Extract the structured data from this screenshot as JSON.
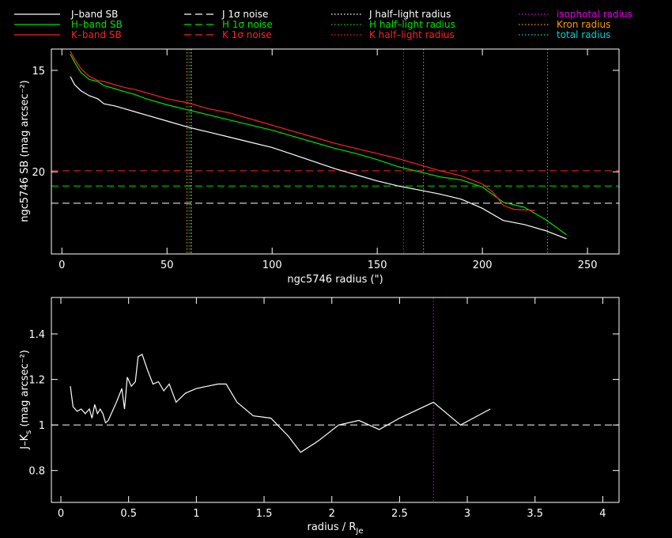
{
  "colors": {
    "background": "#000000",
    "axes": "#ffffff",
    "J": "#ffffff",
    "H": "#00e000",
    "K": "#ff2020",
    "isophotal": "#e000e0",
    "kron": "#ff9a00",
    "total": "#00d0d0"
  },
  "legend": {
    "col1": [
      {
        "label": "J–band SB",
        "color": "#ffffff",
        "style": "solid"
      },
      {
        "label": "H–band SB",
        "color": "#00e000",
        "style": "solid"
      },
      {
        "label": "K–band SB",
        "color": "#ff2020",
        "style": "solid"
      }
    ],
    "col2": [
      {
        "label": "J 1σ noise",
        "color": "#ffffff",
        "style": "dashed"
      },
      {
        "label": "H 1σ noise",
        "color": "#00e000",
        "style": "dashed"
      },
      {
        "label": "K 1σ noise",
        "color": "#ff2020",
        "style": "dashed"
      }
    ],
    "col3": [
      {
        "label": "J half–light radius",
        "color": "#ffffff",
        "style": "dotted"
      },
      {
        "label": "H half–light radius",
        "color": "#00e000",
        "style": "dotted"
      },
      {
        "label": "K half–light radius",
        "color": "#ff2020",
        "style": "dotted"
      }
    ],
    "col4": [
      {
        "label": "isophotal radius",
        "color": "#e000e0",
        "style": "dotted"
      },
      {
        "label": "Kron radius",
        "color": "#ff9a00",
        "style": "dotted"
      },
      {
        "label": "total radius",
        "color": "#00d0d0",
        "style": "dotted"
      }
    ]
  },
  "chart_data": [
    {
      "type": "line",
      "xlabel": "ngc5746 radius (\")",
      "ylabel": "ngc5746 SB (mag arcsec⁻²)",
      "xlim": [
        -5,
        265
      ],
      "ylim": [
        24.05,
        13.95
      ],
      "xticks": [
        0,
        50,
        100,
        150,
        200,
        250
      ],
      "yticks": [
        15,
        20
      ],
      "series": [
        {
          "name": "J–band SB",
          "color": "#ffffff",
          "style": "solid",
          "x": [
            4,
            6,
            9,
            13,
            17,
            20,
            25,
            30,
            35,
            40,
            50,
            60,
            70,
            80,
            90,
            100,
            110,
            120,
            130,
            140,
            150,
            160,
            170,
            180,
            190,
            200,
            210,
            220,
            230,
            240
          ],
          "y": [
            15.3,
            15.7,
            16.0,
            16.25,
            16.4,
            16.65,
            16.75,
            16.9,
            17.05,
            17.2,
            17.5,
            17.8,
            18.05,
            18.3,
            18.55,
            18.8,
            19.15,
            19.5,
            19.85,
            20.15,
            20.45,
            20.7,
            20.9,
            21.1,
            21.35,
            21.8,
            22.4,
            22.6,
            22.9,
            23.3
          ]
        },
        {
          "name": "H–band SB",
          "color": "#00e000",
          "style": "solid",
          "x": [
            4,
            6,
            9,
            13,
            17,
            20,
            25,
            30,
            35,
            40,
            50,
            60,
            70,
            80,
            90,
            100,
            110,
            120,
            130,
            140,
            150,
            160,
            170,
            180,
            190,
            200,
            210,
            220,
            230,
            240
          ],
          "y": [
            14.2,
            14.6,
            15.1,
            15.45,
            15.55,
            15.75,
            15.9,
            16.05,
            16.2,
            16.4,
            16.7,
            16.95,
            17.2,
            17.45,
            17.7,
            17.95,
            18.25,
            18.55,
            18.85,
            19.1,
            19.4,
            19.75,
            20.0,
            20.25,
            20.4,
            20.75,
            21.5,
            21.75,
            22.35,
            23.1
          ]
        },
        {
          "name": "K–band SB",
          "color": "#ff2020",
          "style": "solid",
          "x": [
            4,
            6,
            9,
            13,
            17,
            20,
            25,
            30,
            35,
            40,
            50,
            60,
            70,
            80,
            90,
            100,
            110,
            120,
            130,
            140,
            150,
            160,
            170,
            180,
            190,
            200,
            205,
            210,
            215,
            225
          ],
          "y": [
            14.05,
            14.45,
            14.9,
            15.3,
            15.5,
            15.55,
            15.7,
            15.85,
            15.95,
            16.1,
            16.4,
            16.6,
            16.9,
            17.1,
            17.4,
            17.7,
            18.0,
            18.3,
            18.6,
            18.85,
            19.1,
            19.35,
            19.65,
            19.95,
            20.2,
            20.6,
            21.0,
            21.65,
            21.85,
            21.9
          ]
        }
      ],
      "hlines": [
        {
          "y": 19.95,
          "color": "#ff2020",
          "style": "dashed"
        },
        {
          "y": 20.7,
          "color": "#00e000",
          "style": "dashed"
        },
        {
          "y": 21.55,
          "color": "#ffffff",
          "style": "dashed"
        }
      ],
      "vlines": [
        {
          "x": 59.5,
          "color": "#ff9a00",
          "style": "dotted"
        },
        {
          "x": 60.5,
          "color": "#00e000",
          "style": "dotted"
        },
        {
          "x": 61.5,
          "color": "#ffffff",
          "style": "dotted"
        },
        {
          "x": 162.5,
          "color": "#e000e0",
          "style": "dotted"
        },
        {
          "x": 172,
          "color": "#ff9a00",
          "style": "dotted"
        },
        {
          "x": 231,
          "color": "#00d0d0",
          "style": "dotted"
        }
      ]
    },
    {
      "type": "line",
      "xlabel": "radius / R",
      "xlabel_sub": "Je",
      "ylabel": "J–K",
      "ylabel_sub": "s",
      "ylabel_rest": " (mag arcsec⁻²)",
      "xlim": [
        -0.07,
        4.12
      ],
      "ylim": [
        0.66,
        1.56
      ],
      "xticks": [
        0,
        0.5,
        1,
        1.5,
        2,
        2.5,
        3,
        3.5,
        4
      ],
      "yticks": [
        0.8,
        1,
        1.2,
        1.4
      ],
      "series": [
        {
          "color": "#ffffff",
          "style": "solid",
          "x": [
            0.07,
            0.09,
            0.12,
            0.15,
            0.18,
            0.21,
            0.23,
            0.25,
            0.27,
            0.29,
            0.31,
            0.33,
            0.35,
            0.38,
            0.41,
            0.45,
            0.47,
            0.49,
            0.52,
            0.55,
            0.57,
            0.6,
            0.64,
            0.68,
            0.72,
            0.76,
            0.8,
            0.85,
            0.92,
            1.0,
            1.08,
            1.16,
            1.22,
            1.3,
            1.42,
            1.55,
            1.68,
            1.77,
            1.9,
            2.05,
            2.2,
            2.35,
            2.5,
            2.75,
            2.95,
            3.17
          ],
          "y": [
            1.17,
            1.08,
            1.06,
            1.07,
            1.05,
            1.07,
            1.03,
            1.09,
            1.05,
            1.07,
            1.05,
            1.01,
            1.02,
            1.06,
            1.1,
            1.16,
            1.07,
            1.21,
            1.17,
            1.19,
            1.3,
            1.31,
            1.24,
            1.18,
            1.19,
            1.15,
            1.18,
            1.1,
            1.14,
            1.16,
            1.17,
            1.18,
            1.18,
            1.1,
            1.04,
            1.03,
            0.95,
            0.88,
            0.93,
            1.0,
            1.02,
            0.98,
            1.03,
            1.1,
            1.0,
            1.07
          ]
        }
      ],
      "hlines": [
        {
          "y": 1.0,
          "color": "#ffffff",
          "style": "dashed"
        }
      ],
      "vlines": [
        {
          "x": 2.75,
          "color": "#e000e0",
          "style": "dotted"
        }
      ]
    }
  ]
}
